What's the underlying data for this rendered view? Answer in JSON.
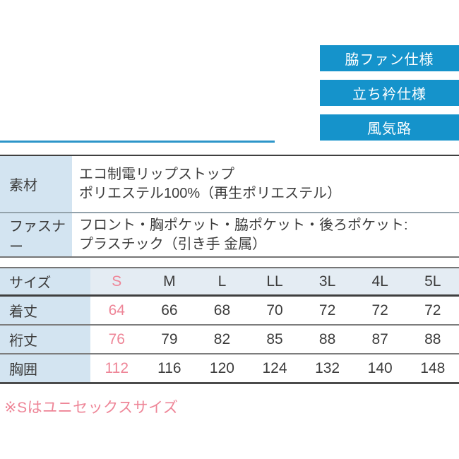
{
  "badges": [
    {
      "label": "脇ファン仕様"
    },
    {
      "label": "立ち衿仕様"
    },
    {
      "label": "風気路"
    }
  ],
  "spec_table": {
    "rows": [
      {
        "label": "素材",
        "line1": "エコ制電リップストップ",
        "line2": "ポリエステル100%（再生ポリエステル）"
      },
      {
        "label": "ファスナー",
        "line1": "フロント・胸ポケット・脇ポケット・後ろポケット:",
        "line2": "プラスチック（引き手 金属）"
      }
    ]
  },
  "size_table": {
    "header_label": "サイズ",
    "sizes": [
      "S",
      "M",
      "L",
      "LL",
      "3L",
      "4L",
      "5L"
    ],
    "rows": [
      {
        "label": "着丈",
        "values": [
          64,
          66,
          68,
          70,
          72,
          72,
          72
        ]
      },
      {
        "label": "裄丈",
        "values": [
          76,
          79,
          82,
          85,
          88,
          87,
          88
        ]
      },
      {
        "label": "胸囲",
        "values": [
          112,
          116,
          120,
          124,
          132,
          140,
          148
        ]
      }
    ]
  },
  "note": "※Sはユニセックスサイズ",
  "colors": {
    "badge_blue": "#1593cb",
    "rule_blue": "#2d95c9",
    "label_cell_bg": "#d3e4f1",
    "header_row_bg": "#e4ecf3",
    "highlight_pink": "#ee8597",
    "text_dark": "#3c3c3c"
  }
}
